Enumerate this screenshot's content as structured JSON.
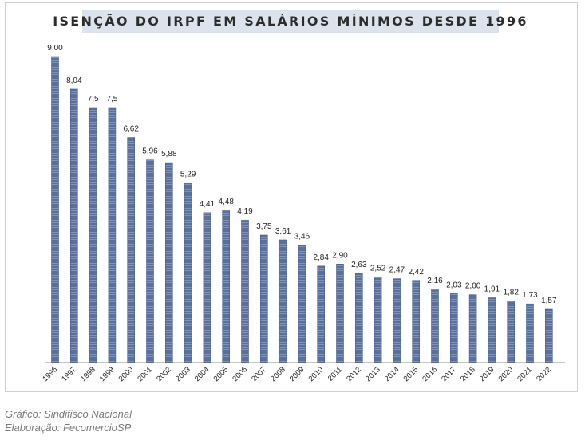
{
  "chart_data": {
    "type": "bar",
    "title": "ISENÇÃO DO IRPF EM SALÁRIOS MÍNIMOS DESDE 1996",
    "xlabel": "",
    "ylabel": "",
    "ylim": [
      0,
      9
    ],
    "grid": false,
    "categories": [
      "1996",
      "1997",
      "1998",
      "1999",
      "2000",
      "2001",
      "2002",
      "2003",
      "2004",
      "2005",
      "2006",
      "2007",
      "2008",
      "2009",
      "2010",
      "2011",
      "2012",
      "2013",
      "2014",
      "2015",
      "2016",
      "2017",
      "2018",
      "2019",
      "2020",
      "2021",
      "2022"
    ],
    "values": [
      9.0,
      8.04,
      7.5,
      7.5,
      6.62,
      5.96,
      5.88,
      5.29,
      4.41,
      4.48,
      4.19,
      3.75,
      3.61,
      3.46,
      2.84,
      2.9,
      2.63,
      2.52,
      2.47,
      2.42,
      2.16,
      2.03,
      2.0,
      1.91,
      1.82,
      1.73,
      1.57
    ],
    "labels": [
      "9,00",
      "8,04",
      "7,5",
      "7,5",
      "6,62",
      "5,96",
      "5,88",
      "5,29",
      "4,41",
      "4,48",
      "4,19",
      "3,75",
      "3,61",
      "3,46",
      "2,84",
      "2,90",
      "2,63",
      "2,52",
      "2,47",
      "2,42",
      "2,16",
      "2,03",
      "2,00",
      "1,91",
      "1,82",
      "1,73",
      "1,57"
    ],
    "bar_color": "#5a6f9c"
  },
  "footer": {
    "source": "Gráfico: Sindifisco Nacional",
    "elaboration": "Elaboração: FecomercioSP"
  }
}
